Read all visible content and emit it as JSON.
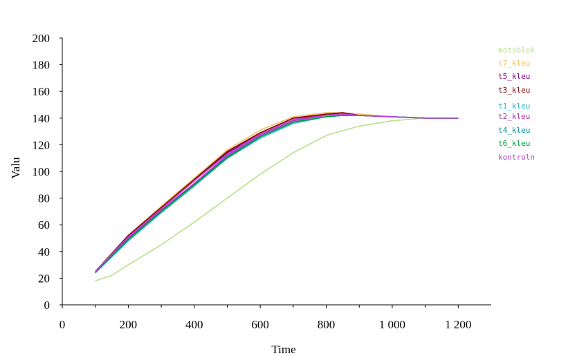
{
  "chart_data": {
    "type": "line",
    "xlabel": "Time",
    "ylabel": "Valu",
    "xlim": [
      0,
      1300
    ],
    "ylim": [
      0,
      200
    ],
    "x_ticks": [
      0,
      200,
      400,
      600,
      800,
      1000,
      1200
    ],
    "x_tick_labels": [
      "0",
      "200",
      "400",
      "600",
      "800",
      "1 000",
      "1 200"
    ],
    "y_ticks": [
      0,
      20,
      40,
      60,
      80,
      100,
      120,
      140,
      160,
      180,
      200
    ],
    "y_tick_labels": [
      "0",
      "20",
      "40",
      "60",
      "80",
      "100",
      "120",
      "140",
      "160",
      "180",
      "200"
    ],
    "grid": false,
    "legend_position": "right",
    "series": [
      {
        "name": "motoblok",
        "color": "#b8e08a",
        "x": [
          100,
          150,
          200,
          300,
          400,
          500,
          600,
          700,
          800,
          900,
          1000,
          1100,
          1200
        ],
        "y": [
          18,
          22,
          30,
          45,
          62,
          80,
          98,
          114,
          127,
          134,
          138,
          140,
          140
        ]
      },
      {
        "name": "t7_kleu",
        "color": "#f0c060",
        "x": [
          100,
          200,
          300,
          400,
          500,
          600,
          700,
          800,
          850,
          900,
          1000,
          1100,
          1200
        ],
        "y": [
          25,
          52,
          74,
          95,
          116,
          131,
          141,
          144,
          144,
          143,
          141,
          140,
          140
        ]
      },
      {
        "name": "t5_kleu",
        "color": "#800080",
        "x": [
          100,
          200,
          300,
          400,
          500,
          600,
          700,
          800,
          850,
          900,
          1000,
          1100,
          1200
        ],
        "y": [
          25,
          51,
          72,
          93,
          114,
          128,
          139,
          143,
          143,
          142,
          141,
          140,
          140
        ]
      },
      {
        "name": "t3_kleu",
        "color": "#8b0000",
        "x": [
          100,
          200,
          300,
          400,
          500,
          600,
          700,
          800,
          850,
          900,
          1000,
          1100,
          1200
        ],
        "y": [
          25,
          52,
          73,
          94,
          115,
          129,
          140,
          143,
          144,
          142,
          141,
          140,
          140
        ]
      },
      {
        "name": "t1_kleu",
        "color": "#20b8c8",
        "x": [
          100,
          200,
          300,
          400,
          500,
          600,
          700,
          800,
          850,
          900,
          1000,
          1100,
          1200
        ],
        "y": [
          24,
          48,
          69,
          89,
          110,
          125,
          136,
          141,
          142,
          142,
          141,
          140,
          140
        ]
      },
      {
        "name": "t2_kleu",
        "color": "#b030b0",
        "x": [
          100,
          200,
          300,
          400,
          500,
          600,
          700,
          800,
          850,
          900,
          1000,
          1100,
          1200
        ],
        "y": [
          25,
          50,
          71,
          91,
          112,
          127,
          138,
          142,
          143,
          142,
          141,
          140,
          140
        ]
      },
      {
        "name": "t4_kleu",
        "color": "#009090",
        "x": [
          100,
          200,
          300,
          400,
          500,
          600,
          700,
          800,
          850,
          900,
          1000,
          1100,
          1200
        ],
        "y": [
          24,
          49,
          70,
          90,
          111,
          126,
          137,
          141,
          142,
          142,
          141,
          140,
          140
        ]
      },
      {
        "name": "t6_kleu",
        "color": "#00a040",
        "x": [
          100,
          200,
          300,
          400,
          500,
          600,
          700,
          800,
          850,
          900,
          1000,
          1100,
          1200
        ],
        "y": [
          24,
          49,
          70,
          90,
          110,
          126,
          137,
          141,
          142,
          142,
          141,
          140,
          140
        ]
      },
      {
        "name": "kontroln",
        "color": "#c040e0",
        "x": [
          100,
          200,
          300,
          400,
          500,
          600,
          700,
          800,
          850,
          900,
          1000,
          1100,
          1200
        ],
        "y": [
          25,
          51,
          72,
          93,
          113,
          128,
          139,
          142,
          143,
          142,
          141,
          140,
          140
        ]
      }
    ]
  }
}
